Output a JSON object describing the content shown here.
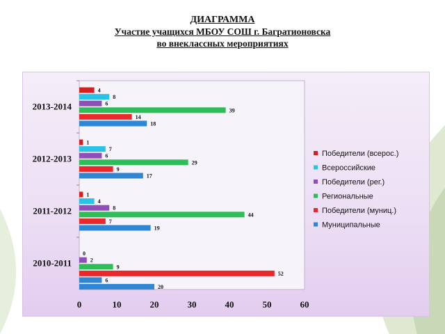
{
  "title": {
    "line1": "ДИАГРАММА",
    "line2": "Участие учащихся МБОУ СОШ г. Багратионовска",
    "line3": "во внеклассных мероприятиях"
  },
  "colors": {
    "background_swoosh": "#c9d8b6",
    "panel_top": "#f4edf8",
    "panel_bottom": "#e3cdef"
  },
  "chart_data": {
    "type": "bar",
    "orientation": "horizontal",
    "title": "",
    "xlabel": "",
    "ylabel": "",
    "xlim": [
      0,
      60
    ],
    "x_ticks": [
      0,
      10,
      20,
      30,
      40,
      50,
      60
    ],
    "grid": false,
    "legend_position": "right",
    "categories": [
      "2013-2014",
      "2012-2013",
      "2011-2012",
      "2010-2011"
    ],
    "series": [
      {
        "name": "Победители (всерос.)",
        "color": "#d42020",
        "values": [
          4,
          1,
          1,
          null
        ]
      },
      {
        "name": "Всероссийские",
        "color": "#29c3e8",
        "values": [
          8,
          7,
          4,
          0
        ]
      },
      {
        "name": "Победители (рег.)",
        "color": "#8e4fb8",
        "values": [
          6,
          6,
          8,
          2
        ]
      },
      {
        "name": "Региональные",
        "color": "#2ebd59",
        "values": [
          39,
          29,
          44,
          9
        ]
      },
      {
        "name": "Победители (муниц.)",
        "color": "#e8282a",
        "values": [
          14,
          9,
          7,
          52
        ]
      },
      {
        "name": "Муниципальные",
        "color": "#2e86d4",
        "values": [
          18,
          17,
          19,
          6
        ]
      }
    ],
    "extra_label": {
      "category": "2010-2011",
      "value": 20,
      "color": "#2e86d4"
    }
  }
}
